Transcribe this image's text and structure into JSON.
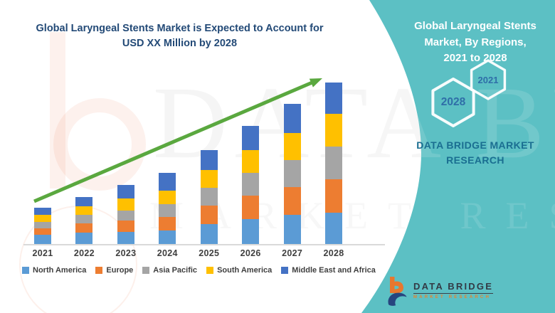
{
  "chart": {
    "title_line1": "Global Laryngeal Stents Market is Expected to Account for",
    "title_line2": "USD XX Million by 2028",
    "title_color": "#234A77"
  },
  "chart_data": {
    "type": "bar",
    "stacked": true,
    "title": "Global Laryngeal Stents Market is Expected to Account for USD XX Million by 2028",
    "xlabel": "",
    "ylabel": "",
    "grid": false,
    "legend_position": "bottom",
    "categories": [
      "2021",
      "2022",
      "2023",
      "2024",
      "2025",
      "2026",
      "2027",
      "2028"
    ],
    "series": [
      {
        "name": "North America",
        "color": "#5B9BD5",
        "values": [
          13,
          16,
          17,
          19,
          28,
          35,
          41,
          44
        ]
      },
      {
        "name": "Europe",
        "color": "#ED7D31",
        "values": [
          9,
          13,
          16,
          19,
          26,
          33,
          39,
          47
        ]
      },
      {
        "name": "Asia Pacific",
        "color": "#A5A5A5",
        "values": [
          9,
          12,
          14,
          18,
          25,
          32,
          38,
          46
        ]
      },
      {
        "name": "South America",
        "color": "#FFC000",
        "values": [
          10,
          12,
          17,
          19,
          25,
          32,
          38,
          46
        ]
      },
      {
        "name": "Middle East and Africa",
        "color": "#4472C4",
        "values": [
          10,
          13,
          19,
          25,
          28,
          34,
          41,
          44
        ]
      }
    ],
    "totals": [
      51,
      66,
      83,
      100,
      132,
      166,
      197,
      227
    ],
    "trend_arrow": {
      "color": "#5AA83F",
      "direction": "up"
    }
  },
  "side_panel": {
    "bg_color": "#5CC0C4",
    "heading_line1": "Global Laryngeal Stents",
    "heading_line2": "Market, By Regions,",
    "heading_line3": "2021 to 2028",
    "hexagon_top_year": "2021",
    "hexagon_bottom_year": "2028",
    "hexagon_text_color": "#2F6EA8",
    "brand_line1": "DATA BRIDGE MARKET",
    "brand_line2": "RESEARCH",
    "brand_color": "#1A6E91"
  },
  "footer_logo": {
    "name_text": "DATA BRIDGE",
    "sub_text": "MARKET RESEARCH",
    "name_color": "#333A45",
    "sub_color": "#E8832C"
  },
  "watermark": {
    "line1": "DATA BRIDGE",
    "line2": "MARKET RESEARCH"
  }
}
